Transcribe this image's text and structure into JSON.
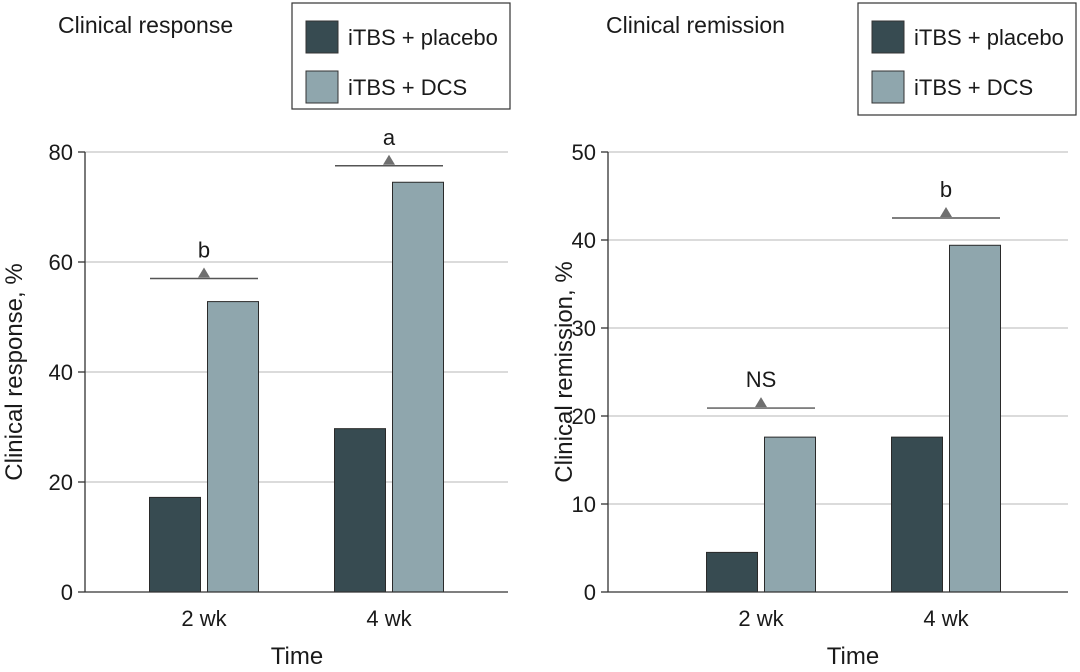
{
  "charts": [
    {
      "title": "Clinical response",
      "ylabel": "Clinical response, %",
      "xlabel": "Time",
      "yticks": [
        "0",
        "20",
        "40",
        "60",
        "80"
      ],
      "legend": [
        {
          "label": "iTBS + placebo",
          "color": "#374b51"
        },
        {
          "label": "iTBS + DCS",
          "color": "#8fa6ad"
        }
      ]
    },
    {
      "title": "Clinical remission",
      "ylabel": "Clinical remission, %",
      "xlabel": "Time",
      "yticks": [
        "0",
        "10",
        "20",
        "30",
        "40",
        "50"
      ],
      "legend": [
        {
          "label": "iTBS + placebo",
          "color": "#374b51"
        },
        {
          "label": "iTBS + DCS",
          "color": "#8fa6ad"
        }
      ]
    }
  ],
  "chart_data": [
    {
      "type": "bar",
      "title": "Clinical response",
      "xlabel": "Time",
      "ylabel": "Clinical response, %",
      "ylim": [
        0,
        80
      ],
      "yticks": [
        0,
        20,
        40,
        60,
        80
      ],
      "grid": true,
      "legend_position": "top-right",
      "categories": [
        "2 wk",
        "4 wk"
      ],
      "series": [
        {
          "name": "iTBS + placebo",
          "color": "#374b51",
          "values": [
            17.2,
            29.7
          ]
        },
        {
          "name": "iTBS + DCS",
          "color": "#8fa6ad",
          "values": [
            52.8,
            74.5
          ]
        }
      ],
      "annotations": [
        {
          "category": "2 wk",
          "label": "b",
          "line_y": 57.0
        },
        {
          "category": "4 wk",
          "label": "a",
          "line_y": 77.5
        }
      ]
    },
    {
      "type": "bar",
      "title": "Clinical remission",
      "xlabel": "Time",
      "ylabel": "Clinical remission, %",
      "ylim": [
        0,
        50
      ],
      "yticks": [
        0,
        10,
        20,
        30,
        40,
        50
      ],
      "grid": true,
      "legend_position": "top-right",
      "categories": [
        "2 wk",
        "4 wk"
      ],
      "series": [
        {
          "name": "iTBS + placebo",
          "color": "#374b51",
          "values": [
            4.5,
            17.6
          ]
        },
        {
          "name": "iTBS + DCS",
          "color": "#8fa6ad",
          "values": [
            17.6,
            39.4
          ]
        }
      ],
      "annotations": [
        {
          "category": "2 wk",
          "label": "NS",
          "line_y": 20.9
        },
        {
          "category": "4 wk",
          "label": "b",
          "line_y": 42.5
        }
      ]
    }
  ]
}
